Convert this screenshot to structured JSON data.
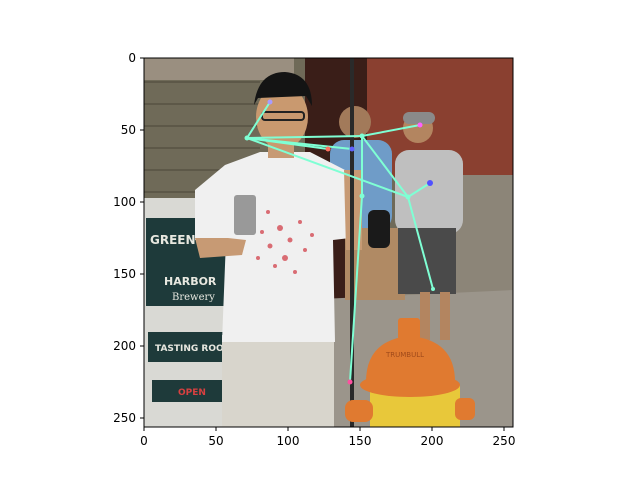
{
  "figure": {
    "x_ticks": [
      "0",
      "50",
      "100",
      "150",
      "200",
      "250"
    ],
    "y_ticks": [
      "0",
      "50",
      "100",
      "150",
      "200",
      "250"
    ]
  },
  "photo": {
    "sign_lines": [
      "GREEN",
      "HARBOR",
      "Brewery",
      "TASTING ROO",
      "OPEN"
    ],
    "hydrant_text": "TRUMBULL"
  },
  "colors": {
    "skeleton": "#7fffd4",
    "brick": "#8a4030",
    "siding": "#7d7662",
    "sign": "#1e3a3a",
    "hydrant_cap": "#e07a30",
    "hydrant_body": "#e8c83a"
  }
}
